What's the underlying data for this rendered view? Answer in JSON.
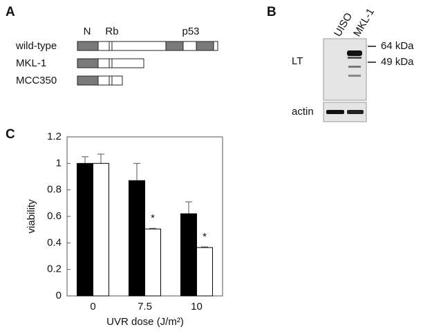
{
  "panel_a": {
    "label": "A",
    "domains": [
      "N",
      "Rb",
      "p53"
    ],
    "constructs": [
      "wild-type",
      "MKL-1",
      "MCC350"
    ]
  },
  "panel_b": {
    "label": "B",
    "lanes": [
      "UISO",
      "MKL-1"
    ],
    "blots": [
      "LT",
      "actin"
    ],
    "markers": [
      "64 kDa",
      "49 kDa"
    ]
  },
  "chart_data": {
    "type": "bar",
    "panel_label": "C",
    "x_label": "UVR dose (J/m²)",
    "y_label": "viability",
    "categories": [
      "0",
      "7.5",
      "10"
    ],
    "series": [
      {
        "color": "#000000",
        "values": [
          1.0,
          0.87,
          0.62
        ],
        "errors": [
          0.05,
          0.13,
          0.09
        ]
      },
      {
        "color": "#ffffff",
        "values": [
          1.0,
          0.505,
          0.365
        ],
        "errors": [
          0.07,
          0.005,
          0.005
        ]
      }
    ],
    "annotations": [
      "*",
      "*"
    ],
    "ylim": [
      0,
      1.2
    ],
    "yticks": [
      0,
      0.2,
      0.4,
      0.6,
      0.8,
      1,
      1.2
    ]
  }
}
